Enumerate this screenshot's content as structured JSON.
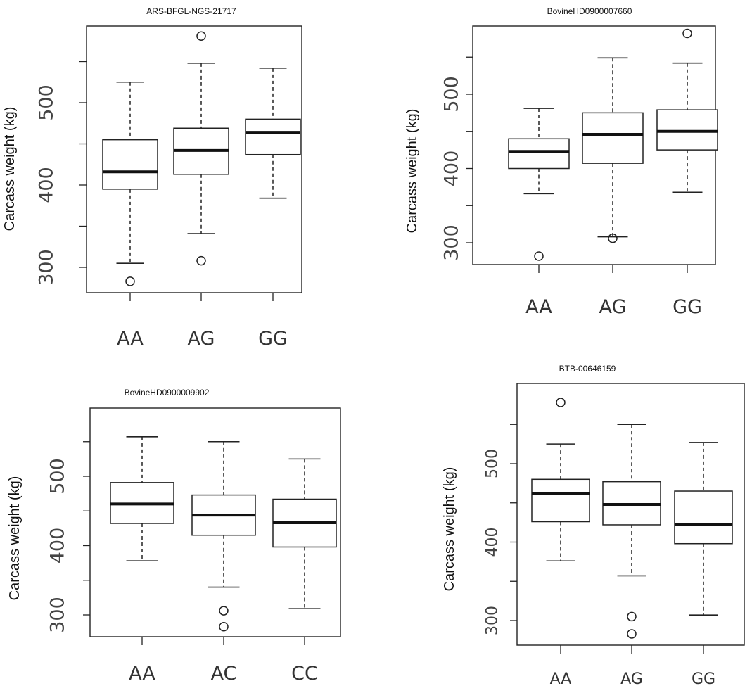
{
  "chart_data": [
    {
      "type": "boxplot",
      "title": "ARS-BFGL-NGS-21717",
      "ylabel": "Carcass weight (kg)",
      "categories": [
        "AA",
        "AG",
        "GG"
      ],
      "y_tick_labels": [
        "300",
        "400",
        "500"
      ],
      "boxes": [
        {
          "category": "AA",
          "whisker_low": 305,
          "q1": 395,
          "median": 416,
          "q3": 455,
          "whisker_high": 525,
          "outliers": [
            283
          ]
        },
        {
          "category": "AG",
          "whisker_low": 341,
          "q1": 413,
          "median": 442,
          "q3": 469,
          "whisker_high": 548,
          "outliers": [
            308,
            581
          ]
        },
        {
          "category": "GG",
          "whisker_low": 384,
          "q1": 437,
          "median": 464,
          "q3": 480,
          "whisker_high": 542,
          "outliers": []
        }
      ],
      "ylim": [
        275,
        600
      ]
    },
    {
      "type": "boxplot",
      "title": "BovineHD0900007660",
      "ylabel": "Carcass weight (kg)",
      "categories": [
        "AA",
        "AG",
        "GG"
      ],
      "y_tick_labels": [
        "300",
        "400",
        "500"
      ],
      "boxes": [
        {
          "category": "AA",
          "whisker_low": 366,
          "q1": 400,
          "median": 423,
          "q3": 440,
          "whisker_high": 481,
          "outliers": [
            282
          ]
        },
        {
          "category": "AG",
          "whisker_low": 308,
          "q1": 407,
          "median": 446,
          "q3": 475,
          "whisker_high": 549,
          "outliers": [
            306
          ]
        },
        {
          "category": "GG",
          "whisker_low": 368,
          "q1": 425,
          "median": 450,
          "q3": 479,
          "whisker_high": 542,
          "outliers": [
            582
          ]
        }
      ],
      "ylim": [
        272,
        605
      ]
    },
    {
      "type": "boxplot",
      "title": "BovineHD0900009902",
      "ylabel": "Carcass weight (kg)",
      "categories": [
        "AA",
        "AC",
        "CC"
      ],
      "y_tick_labels": [
        "300",
        "400",
        "500"
      ],
      "boxes": [
        {
          "category": "AA",
          "whisker_low": 378,
          "q1": 432,
          "median": 460,
          "q3": 491,
          "whisker_high": 557,
          "outliers": []
        },
        {
          "category": "AC",
          "whisker_low": 340,
          "q1": 415,
          "median": 444,
          "q3": 473,
          "whisker_high": 550,
          "outliers": [
            306,
            283
          ]
        },
        {
          "category": "CC",
          "whisker_low": 309,
          "q1": 398,
          "median": 433,
          "q3": 467,
          "whisker_high": 525,
          "outliers": []
        }
      ],
      "ylim": [
        268,
        565
      ]
    },
    {
      "type": "boxplot",
      "title": "BTB-00646159",
      "ylabel": "Carcass weight (kg)",
      "categories": [
        "AA",
        "AG",
        "GG"
      ],
      "y_tick_labels": [
        "300",
        "400",
        "500"
      ],
      "boxes": [
        {
          "category": "AA",
          "whisker_low": 376,
          "q1": 426,
          "median": 462,
          "q3": 480,
          "whisker_high": 525,
          "outliers": [
            578
          ]
        },
        {
          "category": "AG",
          "whisker_low": 357,
          "q1": 422,
          "median": 448,
          "q3": 477,
          "whisker_high": 550,
          "outliers": [
            305,
            283
          ]
        },
        {
          "category": "GG",
          "whisker_low": 307,
          "q1": 398,
          "median": 422,
          "q3": 465,
          "whisker_high": 527,
          "outliers": []
        }
      ],
      "ylim": [
        270,
        585
      ]
    }
  ]
}
